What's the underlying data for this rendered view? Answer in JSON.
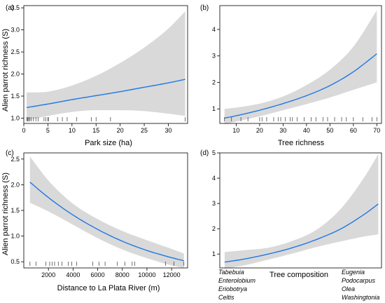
{
  "chart_data": [
    {
      "panel": "(a)",
      "type": "line",
      "xlabel": "Park size (ha)",
      "ylabel": "Alien parrot richness (S)",
      "xlim": [
        0,
        34
      ],
      "ylim": [
        0.88,
        3.55
      ],
      "xticks": [
        0,
        5,
        10,
        15,
        20,
        25,
        30
      ],
      "yticks": [
        1.0,
        1.5,
        2.0,
        2.5,
        3.0,
        3.5
      ],
      "ytick_labels": [
        "1.0",
        "1.5",
        "2.0",
        "2.5",
        "3.0",
        "3.5"
      ],
      "x": [
        0.6,
        5,
        10,
        15,
        20,
        25,
        30,
        33.5
      ],
      "fit": [
        1.24,
        1.32,
        1.42,
        1.51,
        1.6,
        1.7,
        1.8,
        1.88
      ],
      "lower": [
        0.95,
        1.05,
        1.14,
        1.18,
        1.18,
        1.16,
        1.1,
        1.05
      ],
      "upper": [
        1.58,
        1.6,
        1.74,
        1.96,
        2.25,
        2.6,
        3.03,
        3.42
      ],
      "rug": [
        0.6,
        0.8,
        1,
        1.2,
        1.5,
        2,
        2.5,
        3,
        4.2,
        4.6,
        5,
        5.1,
        7,
        8,
        9,
        11,
        14,
        15,
        18,
        33.5
      ],
      "series_color": "#1f77e5",
      "band_color": "#d9d9d9"
    },
    {
      "panel": "(b)",
      "type": "line",
      "xlabel": "Tree richness",
      "ylabel": "",
      "xlim": [
        3,
        72
      ],
      "ylim": [
        0.45,
        4.9
      ],
      "xticks": [
        10,
        20,
        30,
        40,
        50,
        60,
        70
      ],
      "yticks": [
        1,
        2,
        3,
        4
      ],
      "ytick_labels": [
        "1",
        "2",
        "3",
        "4"
      ],
      "x": [
        5,
        10,
        20,
        30,
        40,
        50,
        60,
        70
      ],
      "fit": [
        0.65,
        0.74,
        0.95,
        1.2,
        1.5,
        1.88,
        2.4,
        3.08
      ],
      "lower": [
        0.42,
        0.52,
        0.72,
        0.95,
        1.18,
        1.43,
        1.72,
        2.0
      ],
      "upper": [
        1.0,
        1.05,
        1.2,
        1.47,
        1.9,
        2.48,
        3.35,
        4.72
      ],
      "rug": [
        5,
        8,
        12,
        15,
        20,
        21,
        23,
        26,
        28,
        29,
        31,
        33,
        34,
        36,
        39,
        42,
        44,
        47,
        49,
        52,
        55,
        57,
        60,
        64,
        68,
        70
      ],
      "series_color": "#1f77e5",
      "band_color": "#d9d9d9"
    },
    {
      "panel": "(c)",
      "type": "line",
      "xlabel": "Distance to La Plata River (m)",
      "ylabel": "Alien parrot richness (S)",
      "xlim": [
        0,
        13300
      ],
      "ylim": [
        0.38,
        2.62
      ],
      "xticks": [
        2000,
        4000,
        6000,
        8000,
        10000,
        12000
      ],
      "yticks": [
        0.5,
        1.0,
        1.5,
        2.0,
        2.5
      ],
      "ytick_labels": [
        "0.5",
        "1.0",
        "1.5",
        "2.0",
        "2.5"
      ],
      "x": [
        500,
        2000,
        4000,
        6000,
        8000,
        10000,
        12000,
        13000
      ],
      "fit": [
        2.05,
        1.75,
        1.41,
        1.13,
        0.9,
        0.72,
        0.58,
        0.52
      ],
      "lower": [
        1.65,
        1.48,
        1.22,
        0.96,
        0.74,
        0.57,
        0.43,
        0.38
      ],
      "upper": [
        2.55,
        2.08,
        1.63,
        1.33,
        1.1,
        0.92,
        0.75,
        0.66
      ],
      "rug": [
        500,
        1000,
        1800,
        2100,
        2300,
        2500,
        2800,
        3100,
        3600,
        3900,
        4300,
        5600,
        6100,
        6600,
        7600,
        8200,
        8800,
        9000,
        11500,
        12200,
        13000
      ],
      "series_color": "#1f77e5",
      "band_color": "#d9d9d9"
    },
    {
      "panel": "(d)",
      "type": "line",
      "xlabel": "Tree composition",
      "ylabel": "",
      "xlim": [
        0,
        1
      ],
      "ylim": [
        0.45,
        5.0
      ],
      "yticks": [
        1,
        2,
        3,
        4,
        5
      ],
      "ytick_labels": [
        "1",
        "2",
        "3",
        "4",
        "5"
      ],
      "x": [
        0.03,
        0.15,
        0.3,
        0.45,
        0.6,
        0.75,
        0.9,
        0.98
      ],
      "fit": [
        0.68,
        0.8,
        1.0,
        1.25,
        1.58,
        2.0,
        2.6,
        2.98
      ],
      "lower": [
        0.42,
        0.55,
        0.78,
        1.02,
        1.28,
        1.5,
        1.7,
        1.78
      ],
      "upper": [
        1.08,
        1.15,
        1.25,
        1.52,
        1.97,
        2.8,
        4.1,
        4.95
      ],
      "x_left_labels": [
        "Tabebuia",
        "Enterolobium",
        "Eriobotrya",
        "Celtis"
      ],
      "x_right_labels": [
        "Eugenia",
        "Podocarpus",
        "Olea",
        "Washingtonia"
      ],
      "series_color": "#1f77e5",
      "band_color": "#d9d9d9"
    }
  ]
}
